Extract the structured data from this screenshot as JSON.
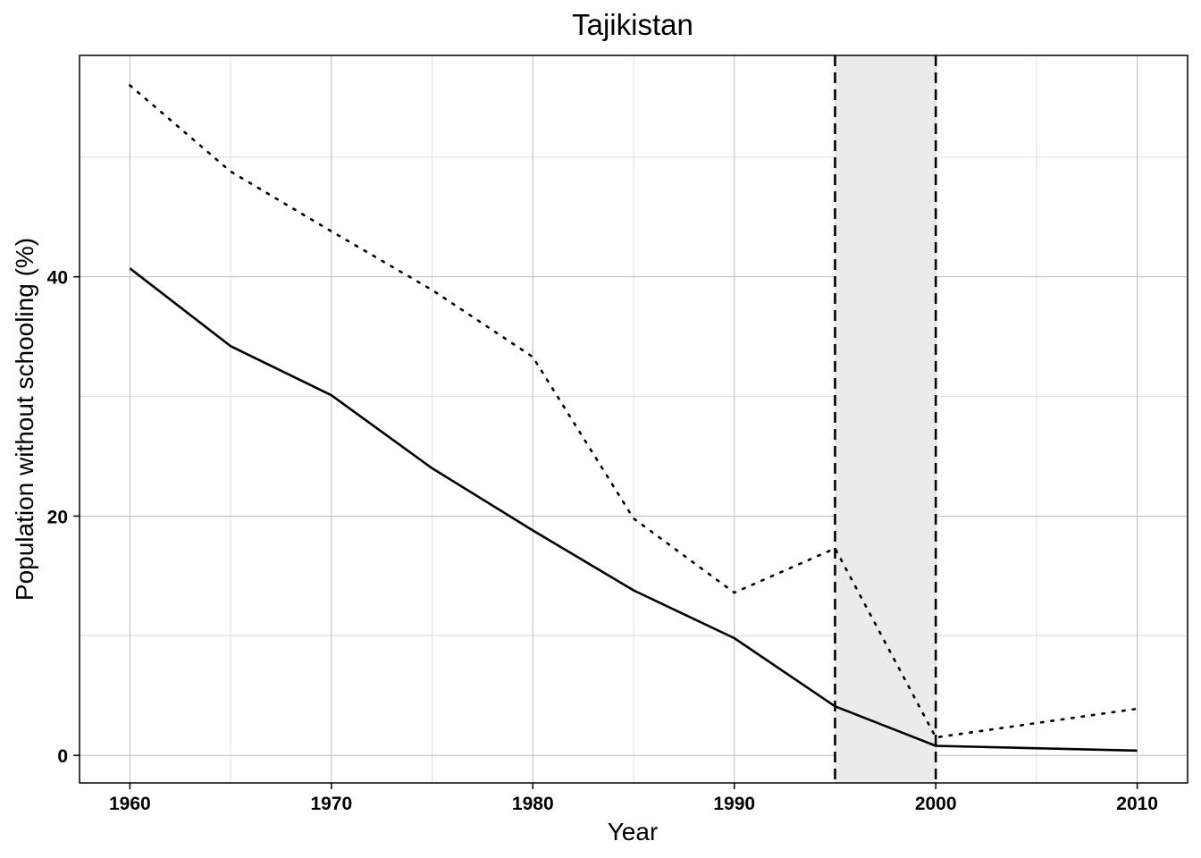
{
  "chart_data": {
    "type": "line",
    "title": "Tajikistan",
    "xlabel": "Year",
    "ylabel": "Population without schooling (%)",
    "xlim": [
      1957.5,
      2012.5
    ],
    "ylim": [
      -2.3,
      58.5
    ],
    "x_ticks": [
      1960,
      1970,
      1980,
      1990,
      2000,
      2010
    ],
    "y_ticks": [
      0,
      20,
      40
    ],
    "x_minor_grid": [
      1965,
      1975,
      1985,
      1995,
      2005
    ],
    "y_minor_grid": [
      10,
      30,
      50
    ],
    "grid": true,
    "shaded_region": {
      "x": [
        1995,
        2000
      ],
      "color": "#ebebeb"
    },
    "vertical_lines": [
      {
        "x": 1995,
        "style": "dashed"
      },
      {
        "x": 2000,
        "style": "dashed"
      }
    ],
    "series": [
      {
        "style": "solid",
        "color": "#000000",
        "x": [
          1960,
          1965,
          1970,
          1975,
          1980,
          1985,
          1990,
          1995,
          2000,
          2010
        ],
        "values": [
          40.7,
          34.2,
          30.1,
          24.0,
          18.8,
          13.8,
          9.8,
          4.1,
          0.8,
          0.4
        ]
      },
      {
        "style": "dotted",
        "color": "#000000",
        "x": [
          1960,
          1965,
          1970,
          1975,
          1980,
          1985,
          1990,
          1995,
          2000,
          2010
        ],
        "values": [
          56.0,
          48.8,
          43.8,
          38.9,
          33.3,
          19.8,
          13.6,
          17.3,
          1.5,
          3.9
        ]
      }
    ]
  }
}
